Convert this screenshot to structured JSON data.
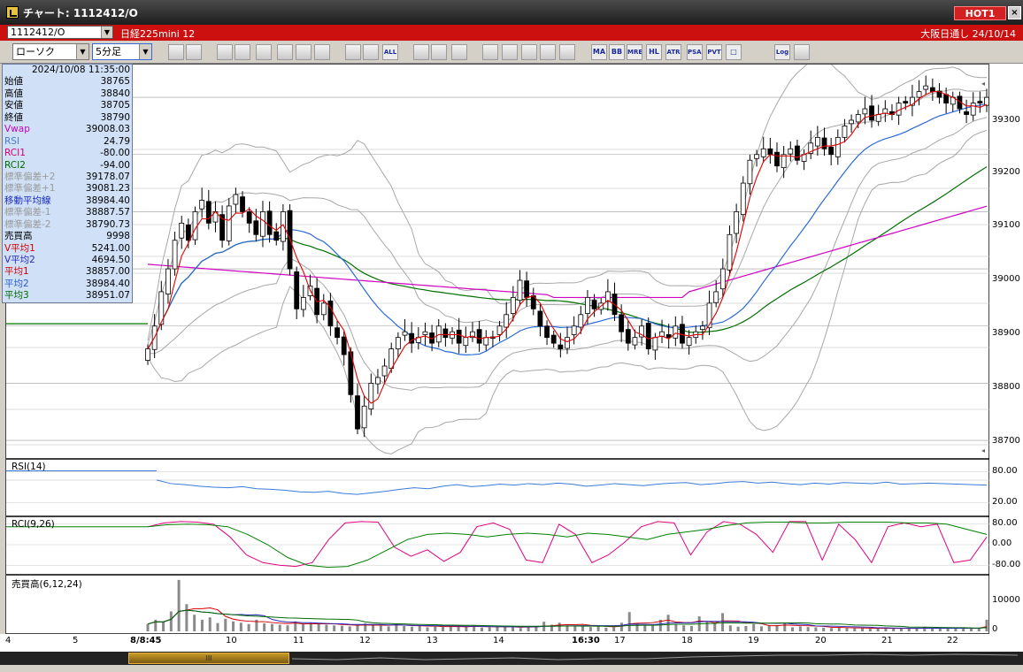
{
  "window": {
    "title": "チャート: 1112412/O",
    "hot_label": "HOT1",
    "close_glyph": "×"
  },
  "header": {
    "symbol_code": "1112412/O",
    "instrument_name": "日経225mini 12",
    "market_info": "大阪日通し  24/10/14"
  },
  "toolbar": {
    "chart_type": "ローソク",
    "interval": "5分足",
    "buttons": [
      {
        "name": "zoom-icon",
        "label": ""
      },
      {
        "name": "crosshair-icon",
        "label": ""
      },
      {
        "name": "pen-icon",
        "label": ""
      },
      {
        "name": "line-tool-icon",
        "label": ""
      },
      {
        "name": "cursor-icon",
        "label": ""
      },
      {
        "name": "undo-icon",
        "label": ""
      },
      {
        "name": "copy-icon",
        "label": ""
      },
      {
        "name": "clear-icon",
        "label": ""
      },
      {
        "name": "candle-icon",
        "label": ""
      },
      {
        "name": "candle-fill-icon",
        "label": ""
      },
      {
        "name": "all-button",
        "label": "ALL"
      },
      {
        "name": "settings-icon",
        "label": ""
      },
      {
        "name": "tools-icon",
        "label": ""
      },
      {
        "name": "color-icon",
        "label": ""
      },
      {
        "name": "marker-icon",
        "label": ""
      },
      {
        "name": "search-chart-icon",
        "label": ""
      },
      {
        "name": "indicator-icon",
        "label": ""
      },
      {
        "name": "grid-icon",
        "label": ""
      },
      {
        "name": "disabled-icon",
        "label": ""
      },
      {
        "name": "ma-button",
        "label": "MA"
      },
      {
        "name": "bb-button",
        "label": "BB"
      },
      {
        "name": "mre-button",
        "label": "MRE"
      },
      {
        "name": "hl-button",
        "label": "HL"
      },
      {
        "name": "atr-button",
        "label": "ATR"
      },
      {
        "name": "psar-button",
        "label": "PSAR"
      },
      {
        "name": "pvt-button",
        "label": "PVT"
      },
      {
        "name": "frame-button",
        "label": "□"
      },
      {
        "name": "log-button",
        "label": "Log"
      },
      {
        "name": "window-icon",
        "label": ""
      }
    ]
  },
  "info_panel": {
    "datetime": "2024/10/08  11:35:00",
    "rows": [
      {
        "label": "始値",
        "value": "38765",
        "color": "#000000"
      },
      {
        "label": "高値",
        "value": "38840",
        "color": "#000000"
      },
      {
        "label": "安値",
        "value": "38705",
        "color": "#000000"
      },
      {
        "label": "終値",
        "value": "38790",
        "color": "#000000"
      },
      {
        "label": "Vwap",
        "value": "39008.03",
        "color": "#c000c0"
      },
      {
        "label": "RSI",
        "value": "24.79",
        "color": "#4a7ad0"
      },
      {
        "label": "RCI1",
        "value": "-80.00",
        "color": "#d00070"
      },
      {
        "label": "RCI2",
        "value": "-94.00",
        "color": "#006a00"
      },
      {
        "label": "標準偏差+2",
        "value": "39178.07",
        "color": "#9a9a9a"
      },
      {
        "label": "標準偏差+1",
        "value": "39081.23",
        "color": "#9a9a9a"
      },
      {
        "label": "移動平均線",
        "value": "38984.40",
        "color": "#1a2ac0"
      },
      {
        "label": "標準偏差-1",
        "value": "38887.57",
        "color": "#9a9a9a"
      },
      {
        "label": "標準偏差-2",
        "value": "38790.73",
        "color": "#9a9a9a"
      },
      {
        "label": "売買高",
        "value": "9998",
        "color": "#000000"
      },
      {
        "label": "V平均1",
        "value": "5241.00",
        "color": "#d00000"
      },
      {
        "label": "V平均2",
        "value": "4694.50",
        "color": "#2a2ac0"
      },
      {
        "label": "平均1",
        "value": "38857.00",
        "color": "#d00000"
      },
      {
        "label": "平均2",
        "value": "38984.40",
        "color": "#2a5ad0"
      },
      {
        "label": "平均3",
        "value": "38951.07",
        "color": "#006a00"
      }
    ]
  },
  "price_axis": {
    "ticks": [
      "39300",
      "39200",
      "39100",
      "39000",
      "38900",
      "38800",
      "38700"
    ],
    "range": [
      38680,
      39345
    ]
  },
  "rsi_panel": {
    "label": "RSI(14)",
    "ticks": [
      "80.00",
      "20.00"
    ]
  },
  "rci_panel": {
    "label": "RCI(9,26)",
    "ticks": [
      "80.00",
      "0.00",
      "-80.00"
    ]
  },
  "volume_panel": {
    "label": "売買高(6,12,24)",
    "ticks": [
      "10000",
      "0"
    ]
  },
  "time_axis": {
    "labels": [
      "4",
      "5",
      "8/8:45",
      "10",
      "11",
      "12",
      "13",
      "14",
      "16:30",
      "17",
      "18",
      "19",
      "20",
      "21",
      "22"
    ]
  },
  "scroll": {
    "grip": "III"
  },
  "colors": {
    "candle_up": "#ffffff",
    "candle_down": "#000000",
    "ma_short": "#e00000",
    "ma_mid": "#2a6ad8",
    "ma_long": "#007000",
    "vwap": "#d000c0",
    "bollinger": "#a8a8a8",
    "rsi": "#3a7ad8",
    "rci1": "#e00080",
    "rci2": "#008000",
    "volume": "#8a8a8a"
  },
  "chart_data": [
    {
      "type": "candlestick",
      "title": "",
      "y_range": [
        38680,
        39345
      ],
      "series_names": [
        "平均1",
        "平均2",
        "平均3",
        "Vwap",
        "標準偏差±1",
        "標準偏差±2"
      ],
      "closes": [
        38860,
        38900,
        38960,
        39000,
        39050,
        39080,
        39050,
        39100,
        39120,
        39080,
        39100,
        39050,
        39110,
        39130,
        39100,
        39080,
        39060,
        39100,
        39060,
        39050,
        39100,
        39000,
        38930,
        38950,
        38970,
        38920,
        38940,
        38900,
        38880,
        38850,
        38780,
        38720,
        38760,
        38800,
        38810,
        38830,
        38860,
        38880,
        38890,
        38870,
        38880,
        38890,
        38870,
        38900,
        38880,
        38890,
        38870,
        38880,
        38890,
        38870,
        38880,
        38880,
        38900,
        38920,
        38950,
        38980,
        38950,
        38930,
        38900,
        38880,
        38870,
        38860,
        38880,
        38900,
        38920,
        38950,
        38930,
        38940,
        38960,
        38920,
        38890,
        38870,
        38880,
        38900,
        38860,
        38880,
        38890,
        38880,
        38900,
        38870,
        38880,
        38890,
        38900,
        38940,
        38960,
        39000,
        39060,
        39100,
        39150,
        39190,
        39200,
        39210,
        39200,
        39180,
        39200,
        39210,
        39190,
        39200,
        39220,
        39230,
        39210,
        39200,
        39230,
        39250,
        39260,
        39270,
        39280,
        39260,
        39270,
        39280,
        39270,
        39290,
        39290,
        39300,
        39310,
        39320,
        39310,
        39300,
        39290,
        39300,
        39280,
        39270,
        39290,
        39290,
        39300
      ]
    },
    {
      "type": "line",
      "title": "RSI(14)",
      "ylim": [
        0,
        100
      ],
      "values": [
        64,
        57,
        55,
        52,
        50,
        49,
        51,
        47,
        46,
        44,
        41,
        40,
        42,
        38,
        36,
        39,
        42,
        46,
        49,
        47,
        52,
        55,
        51,
        53,
        56,
        54,
        57,
        55,
        58,
        56,
        52,
        54,
        57,
        55,
        53,
        56,
        58,
        59,
        55,
        57,
        60,
        61,
        58,
        60,
        57,
        55,
        58,
        56,
        59,
        58,
        57,
        60,
        56,
        57,
        58,
        57,
        56,
        55,
        54
      ]
    },
    {
      "type": "line",
      "title": "RCI(9,26)",
      "ylim": [
        -100,
        100
      ],
      "series": [
        {
          "name": "RCI1",
          "values": [
            70,
            85,
            90,
            88,
            80,
            30,
            -40,
            -70,
            -80,
            -85,
            -70,
            20,
            85,
            90,
            88,
            -10,
            -45,
            -20,
            -65,
            -30,
            70,
            85,
            60,
            -60,
            -70,
            80,
            40,
            -70,
            -40,
            10,
            70,
            90,
            85,
            -40,
            50,
            90,
            80,
            40,
            -30,
            90,
            90,
            -60,
            80,
            20,
            -70,
            70,
            85,
            70,
            80,
            -70,
            -60,
            30
          ]
        },
        {
          "name": "RCI2",
          "values": [
            70,
            78,
            80,
            78,
            70,
            40,
            0,
            -50,
            -80,
            -88,
            -85,
            -60,
            -20,
            20,
            40,
            45,
            40,
            30,
            40,
            45,
            40,
            30,
            45,
            40,
            30,
            20,
            40,
            50,
            60,
            75,
            85,
            88,
            88,
            85,
            85,
            88,
            88,
            88,
            85,
            85,
            80,
            60,
            40
          ]
        }
      ]
    },
    {
      "type": "bar",
      "title": "売買高(6,12,24)",
      "ylim": [
        0,
        16000
      ],
      "values": [
        2200,
        3500,
        2800,
        6000,
        15500,
        8200,
        5000,
        3500,
        4200,
        2500,
        3800,
        3000,
        2600,
        2200,
        3500,
        2400,
        2200,
        2000,
        1800,
        3000,
        2100,
        2600,
        2200,
        2000,
        1800,
        1700,
        1500,
        1900,
        2400,
        2000,
        1700,
        1500,
        2200,
        1600,
        1400,
        1700,
        1200,
        1400,
        1300,
        1600,
        1500,
        1300,
        1800,
        1100,
        1200,
        1500,
        1400,
        1200,
        1000,
        1600,
        1300,
        2900,
        2000,
        2600,
        1800,
        1500,
        1700,
        1300,
        1500,
        1100,
        1200,
        2600,
        5800,
        2500,
        1900,
        1700,
        3500,
        5000,
        2200,
        1800,
        1600,
        4500,
        3000,
        2400,
        5500,
        1800,
        1400,
        1600,
        2200,
        1500,
        1700,
        1800,
        2600,
        1200,
        1500,
        1300,
        1200,
        1100,
        1000,
        1100,
        1000,
        900,
        1000,
        800,
        900,
        1000,
        800,
        900,
        1000,
        900,
        1200,
        800,
        900,
        1000,
        900,
        1100,
        1000,
        900,
        3500
      ]
    }
  ]
}
